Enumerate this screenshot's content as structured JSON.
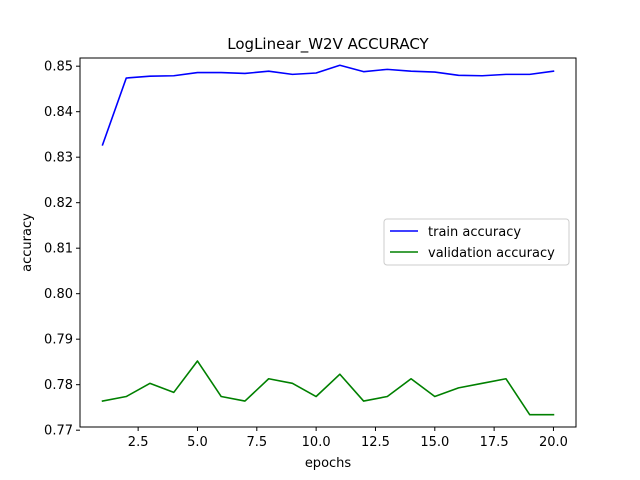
{
  "chart_data": {
    "type": "line",
    "title": "LogLinear_W2V ACCURACY",
    "xlabel": "epochs",
    "ylabel": "accuracy",
    "xlim": [
      0.05,
      20.95
    ],
    "ylim": [
      0.7707,
      0.8518
    ],
    "xticks": [
      2.5,
      5.0,
      7.5,
      10.0,
      12.5,
      15.0,
      17.5,
      20.0
    ],
    "xtick_labels": [
      "2.5",
      "5.0",
      "7.5",
      "10.0",
      "12.5",
      "15.0",
      "17.5",
      "20.0"
    ],
    "yticks": [
      0.77,
      0.78,
      0.79,
      0.8,
      0.81,
      0.82,
      0.83,
      0.84,
      0.85
    ],
    "ytick_labels": [
      "0.77",
      "0.78",
      "0.79",
      "0.80",
      "0.81",
      "0.82",
      "0.83",
      "0.84",
      "0.85"
    ],
    "grid": false,
    "legend_position": "center-right",
    "x": [
      1,
      2,
      3,
      4,
      5,
      6,
      7,
      8,
      9,
      10,
      11,
      12,
      13,
      14,
      15,
      16,
      17,
      18,
      19,
      20
    ],
    "series": [
      {
        "name": "train accuracy",
        "color": "#0000ff",
        "values": [
          0.8327,
          0.8474,
          0.8478,
          0.8479,
          0.8486,
          0.8486,
          0.8484,
          0.8489,
          0.8482,
          0.8485,
          0.8502,
          0.8488,
          0.8493,
          0.8489,
          0.8487,
          0.848,
          0.8479,
          0.8482,
          0.8482,
          0.8489
        ]
      },
      {
        "name": "validation accuracy",
        "color": "#008000",
        "values": [
          0.7764,
          0.7774,
          0.7803,
          0.7783,
          0.7852,
          0.7774,
          0.7764,
          0.7813,
          0.7803,
          0.7774,
          0.7823,
          0.7764,
          0.7774,
          0.7813,
          0.7774,
          0.7793,
          0.7803,
          0.7813,
          0.7734,
          0.7734
        ]
      }
    ]
  }
}
